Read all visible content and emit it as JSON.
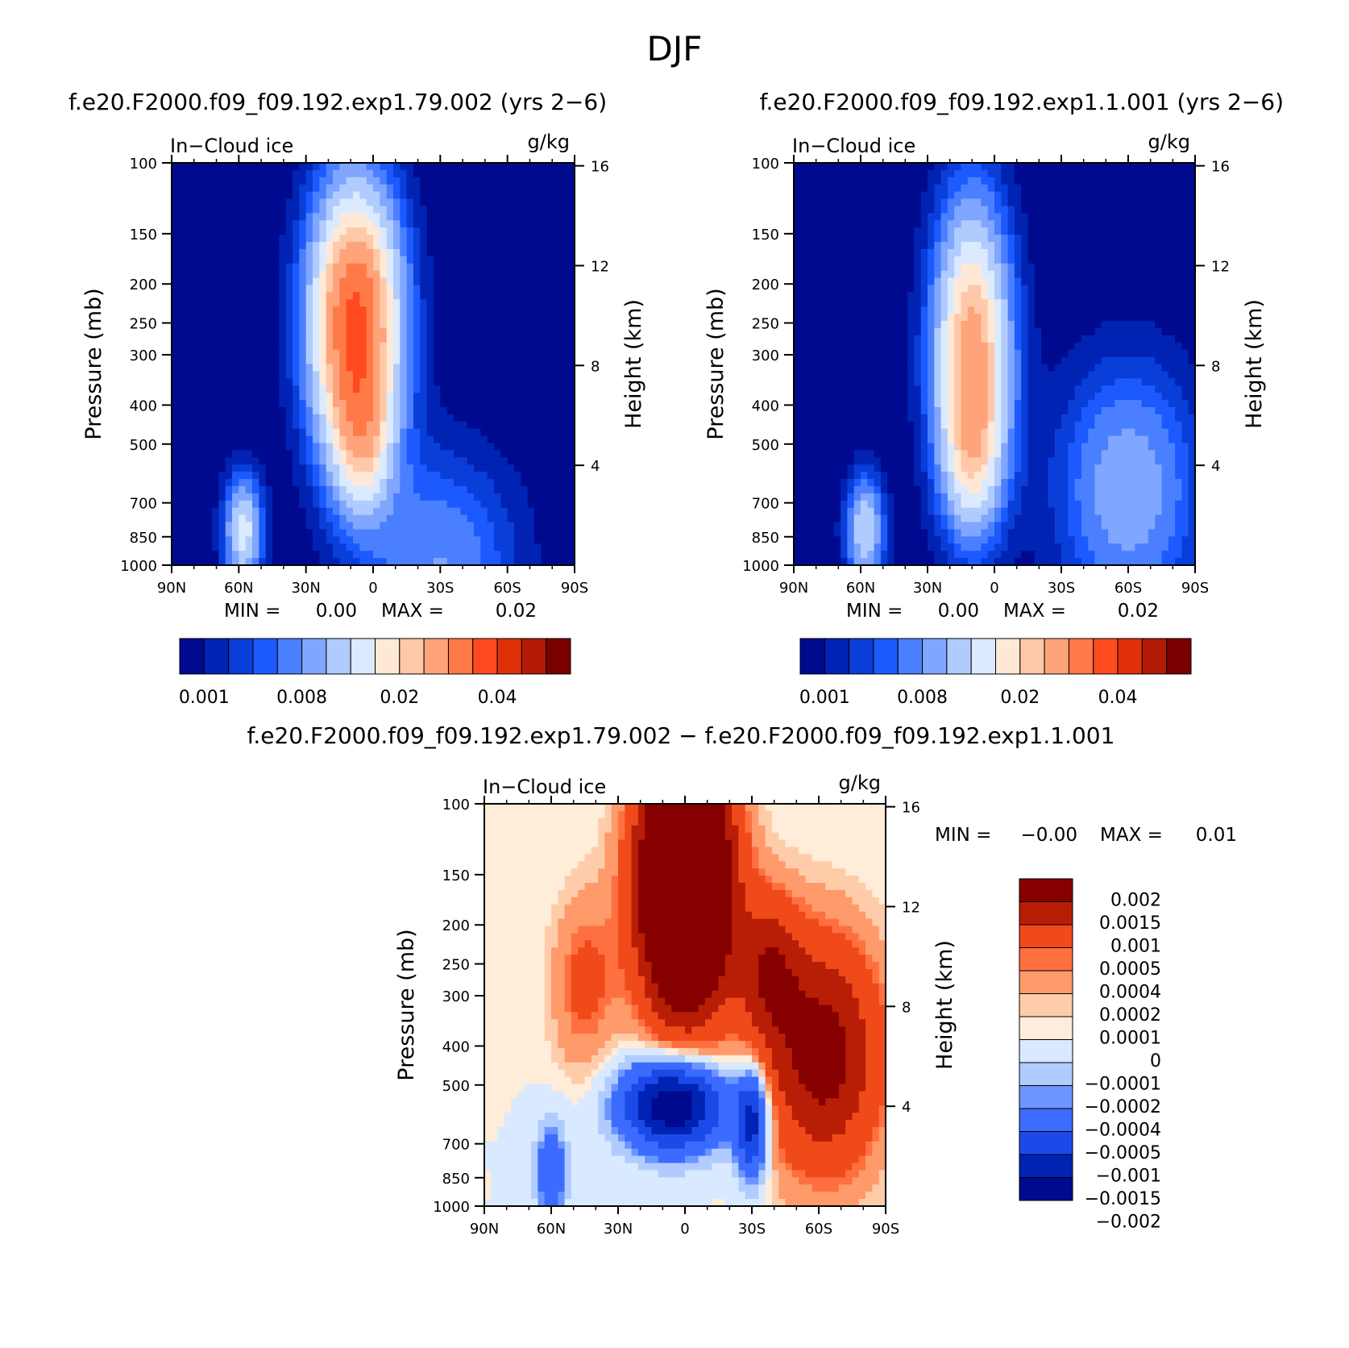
{
  "figure": {
    "title": "DJF",
    "diff_title": "f.e20.F2000.f09_f09.192.exp1.79.002 − f.e20.F2000.f09_f09.192.exp1.1.001"
  },
  "colors": {
    "seq": [
      "#000a8f",
      "#0023b3",
      "#0a3ed9",
      "#1c5aff",
      "#4a80ff",
      "#80a6ff",
      "#b0ccff",
      "#dbeaff",
      "#ffe9d6",
      "#ffc8a8",
      "#ffa37a",
      "#ff7a47",
      "#ff4a1f",
      "#e0300a",
      "#b31a05",
      "#7a0000"
    ],
    "div": [
      "#000a8f",
      "#0023b3",
      "#1c4ae8",
      "#3b6bff",
      "#6b95ff",
      "#b0ccff",
      "#d9e9ff",
      "#ffecd9",
      "#ffccaa",
      "#ff9a6b",
      "#ff7040",
      "#f04a1a",
      "#b81e05",
      "#860000"
    ]
  },
  "chart_data": [
    {
      "type": "heatmap",
      "panel": "left",
      "title": "f.e20.F2000.f09_f09.192.exp1.79.002 (yrs 2−6)",
      "variable": "In−Cloud ice",
      "units": "g/kg",
      "xlabel": "",
      "ylabel": "Pressure (mb)",
      "ylabel_right": "Height (km)",
      "x_ticks": [
        "90N",
        "60N",
        "30N",
        "0",
        "30S",
        "60S",
        "90S"
      ],
      "y_ticks": [
        "100",
        "150",
        "200",
        "250",
        "300",
        "400",
        "500",
        "700",
        "850",
        "1000"
      ],
      "y2_ticks": [
        "16",
        "12",
        "8",
        "4"
      ],
      "min_label": "MIN =",
      "min_value": "0.00",
      "max_label": "MAX =",
      "max_value": "0.02",
      "colorbar_labels": [
        "0.001",
        "0.008",
        "0.02",
        "0.04"
      ],
      "contour_field": [
        {
          "lat": -30,
          "p": 1000,
          "sigma_lat": 24,
          "sigma_p": 0.45,
          "amp": 2.7
        },
        {
          "lat": 8,
          "p": 250,
          "sigma_lat": 14,
          "sigma_p": 0.55,
          "amp": 11.0
        },
        {
          "lat": 5,
          "p": 500,
          "sigma_lat": 9,
          "sigma_p": 0.28,
          "amp": 3.5
        },
        {
          "lat": 58,
          "p": 820,
          "sigma_lat": 6,
          "sigma_p": 0.22,
          "amp": 5.0
        }
      ]
    },
    {
      "type": "heatmap",
      "panel": "right",
      "title": "f.e20.F2000.f09_f09.192.exp1.1.001 (yrs 2−6)",
      "variable": "In−Cloud ice",
      "units": "g/kg",
      "xlabel": "",
      "ylabel": "Pressure (mb)",
      "ylabel_right": "Height (km)",
      "x_ticks": [
        "90N",
        "60N",
        "30N",
        "0",
        "30S",
        "60S",
        "90S"
      ],
      "y_ticks": [
        "100",
        "150",
        "200",
        "250",
        "300",
        "400",
        "500",
        "700",
        "850",
        "1000"
      ],
      "y2_ticks": [
        "16",
        "12",
        "8",
        "4"
      ],
      "min_label": "MIN =",
      "min_value": "0.00",
      "max_label": "MAX =",
      "max_value": "0.02",
      "colorbar_labels": [
        "0.001",
        "0.008",
        "0.02",
        "0.04"
      ],
      "contour_field": [
        {
          "lat": -60,
          "p": 650,
          "sigma_lat": 22,
          "sigma_p": 0.5,
          "amp": 3.4
        },
        {
          "lat": 10,
          "p": 300,
          "sigma_lat": 12,
          "sigma_p": 0.6,
          "amp": 8.2
        },
        {
          "lat": 10,
          "p": 550,
          "sigma_lat": 9,
          "sigma_p": 0.3,
          "amp": 2.5
        },
        {
          "lat": 58,
          "p": 820,
          "sigma_lat": 6,
          "sigma_p": 0.22,
          "amp": 4.5
        }
      ]
    },
    {
      "type": "heatmap",
      "panel": "difference",
      "title": "f.e20.F2000.f09_f09.192.exp1.79.002 − f.e20.F2000.f09_f09.192.exp1.1.001",
      "variable": "In−Cloud ice",
      "units": "g/kg",
      "xlabel": "",
      "ylabel": "Pressure (mb)",
      "ylabel_right": "Height (km)",
      "x_ticks": [
        "90N",
        "60N",
        "30N",
        "0",
        "30S",
        "60S",
        "90S"
      ],
      "y_ticks": [
        "100",
        "150",
        "200",
        "250",
        "300",
        "400",
        "500",
        "700",
        "850",
        "1000"
      ],
      "y2_ticks": [
        "16",
        "12",
        "8",
        "4"
      ],
      "min_label": "MIN =",
      "min_value": "−0.00",
      "max_label": "MAX =",
      "max_value": "0.01",
      "colorbar_labels": [
        "0.002",
        "0.0015",
        "0.001",
        "0.0005",
        "0.0004",
        "0.0002",
        "0.0001",
        "0",
        "−0.0001",
        "−0.0002",
        "−0.0004",
        "−0.0005",
        "−0.001",
        "−0.0015",
        "−0.002"
      ],
      "contour_field": [
        {
          "lat": 0,
          "p": 160,
          "sigma_lat": 14,
          "sigma_p": 0.5,
          "amp": 0.0045
        },
        {
          "lat": -62,
          "p": 420,
          "sigma_lat": 18,
          "sigma_p": 0.45,
          "amp": 0.0018
        },
        {
          "lat": -38,
          "p": 260,
          "sigma_lat": 10,
          "sigma_p": 0.3,
          "amp": 0.0012
        },
        {
          "lat": 45,
          "p": 280,
          "sigma_lat": 10,
          "sigma_p": 0.35,
          "amp": 0.0006
        },
        {
          "lat": 5,
          "p": 560,
          "sigma_lat": 16,
          "sigma_p": 0.18,
          "amp": -0.0026
        },
        {
          "lat": -30,
          "p": 620,
          "sigma_lat": 5,
          "sigma_p": 0.22,
          "amp": -0.0018
        },
        {
          "lat": 60,
          "p": 820,
          "sigma_lat": 5,
          "sigma_p": 0.2,
          "amp": -0.0009
        }
      ]
    }
  ]
}
